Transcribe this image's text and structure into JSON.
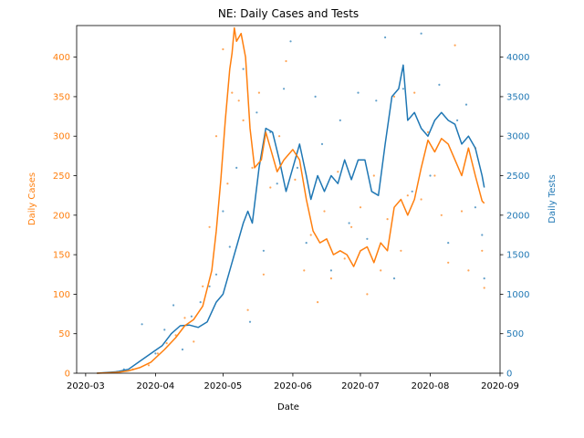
{
  "chart_data": {
    "type": "line",
    "title": "NE: Daily Cases and Tests",
    "xlabel": "Date",
    "ylabel_left": "Daily Cases",
    "ylabel_right": "Daily Tests",
    "x_ticks": [
      "2020-03",
      "2020-04",
      "2020-05",
      "2020-06",
      "2020-07",
      "2020-08",
      "2020-09"
    ],
    "xlim": [
      "2020-02-26",
      "2020-09-01"
    ],
    "ylim_left": [
      0,
      440
    ],
    "ylim_right": [
      0,
      4400
    ],
    "yticks_left": [
      0,
      50,
      100,
      150,
      200,
      250,
      300,
      350,
      400
    ],
    "yticks_right": [
      0,
      500,
      1000,
      1500,
      2000,
      2500,
      3000,
      3500,
      4000
    ],
    "grid": false,
    "colors": {
      "cases": "#ff7f0e",
      "tests": "#1f77b4"
    },
    "series": [
      {
        "axis": "left",
        "color": "#ff7f0e",
        "line": [
          [
            "2020-03-06",
            0
          ],
          [
            "2020-03-15",
            1
          ],
          [
            "2020-03-20",
            3
          ],
          [
            "2020-03-25",
            7
          ],
          [
            "2020-03-30",
            14
          ],
          [
            "2020-04-05",
            30
          ],
          [
            "2020-04-10",
            45
          ],
          [
            "2020-04-14",
            60
          ],
          [
            "2020-04-18",
            68
          ],
          [
            "2020-04-22",
            85
          ],
          [
            "2020-04-26",
            130
          ],
          [
            "2020-04-28",
            180
          ],
          [
            "2020-04-30",
            245
          ],
          [
            "2020-05-02",
            320
          ],
          [
            "2020-05-04",
            385
          ],
          [
            "2020-05-05",
            405
          ],
          [
            "2020-05-06",
            437
          ],
          [
            "2020-05-07",
            420
          ],
          [
            "2020-05-09",
            430
          ],
          [
            "2020-05-11",
            400
          ],
          [
            "2020-05-13",
            310
          ],
          [
            "2020-05-15",
            260
          ],
          [
            "2020-05-18",
            270
          ],
          [
            "2020-05-20",
            305
          ],
          [
            "2020-05-22",
            285
          ],
          [
            "2020-05-25",
            255
          ],
          [
            "2020-05-28",
            270
          ],
          [
            "2020-06-01",
            283
          ],
          [
            "2020-06-04",
            270
          ],
          [
            "2020-06-07",
            220
          ],
          [
            "2020-06-10",
            180
          ],
          [
            "2020-06-13",
            165
          ],
          [
            "2020-06-16",
            170
          ],
          [
            "2020-06-19",
            150
          ],
          [
            "2020-06-22",
            155
          ],
          [
            "2020-06-25",
            150
          ],
          [
            "2020-06-28",
            135
          ],
          [
            "2020-07-01",
            155
          ],
          [
            "2020-07-04",
            160
          ],
          [
            "2020-07-07",
            140
          ],
          [
            "2020-07-10",
            165
          ],
          [
            "2020-07-13",
            155
          ],
          [
            "2020-07-16",
            210
          ],
          [
            "2020-07-19",
            220
          ],
          [
            "2020-07-22",
            200
          ],
          [
            "2020-07-25",
            220
          ],
          [
            "2020-07-28",
            260
          ],
          [
            "2020-07-31",
            295
          ],
          [
            "2020-08-03",
            280
          ],
          [
            "2020-08-06",
            297
          ],
          [
            "2020-08-09",
            290
          ],
          [
            "2020-08-12",
            270
          ],
          [
            "2020-08-15",
            250
          ],
          [
            "2020-08-18",
            285
          ],
          [
            "2020-08-21",
            250
          ],
          [
            "2020-08-24",
            218
          ],
          [
            "2020-08-25",
            215
          ]
        ],
        "points": [
          [
            "2020-03-15",
            2
          ],
          [
            "2020-03-22",
            5
          ],
          [
            "2020-03-29",
            10
          ],
          [
            "2020-04-02",
            25
          ],
          [
            "2020-04-06",
            38
          ],
          [
            "2020-04-10",
            48
          ],
          [
            "2020-04-14",
            70
          ],
          [
            "2020-04-18",
            40
          ],
          [
            "2020-04-22",
            110
          ],
          [
            "2020-04-25",
            185
          ],
          [
            "2020-04-28",
            300
          ],
          [
            "2020-05-01",
            410
          ],
          [
            "2020-05-03",
            240
          ],
          [
            "2020-05-05",
            355
          ],
          [
            "2020-05-08",
            345
          ],
          [
            "2020-05-10",
            320
          ],
          [
            "2020-05-12",
            80
          ],
          [
            "2020-05-14",
            260
          ],
          [
            "2020-05-17",
            355
          ],
          [
            "2020-05-19",
            125
          ],
          [
            "2020-05-22",
            235
          ],
          [
            "2020-05-26",
            300
          ],
          [
            "2020-05-29",
            395
          ],
          [
            "2020-06-02",
            245
          ],
          [
            "2020-06-06",
            130
          ],
          [
            "2020-06-09",
            175
          ],
          [
            "2020-06-12",
            90
          ],
          [
            "2020-06-15",
            205
          ],
          [
            "2020-06-18",
            120
          ],
          [
            "2020-06-21",
            255
          ],
          [
            "2020-06-24",
            145
          ],
          [
            "2020-06-27",
            185
          ],
          [
            "2020-07-01",
            210
          ],
          [
            "2020-07-04",
            100
          ],
          [
            "2020-07-07",
            250
          ],
          [
            "2020-07-10",
            130
          ],
          [
            "2020-07-13",
            195
          ],
          [
            "2020-07-16",
            350
          ],
          [
            "2020-07-19",
            155
          ],
          [
            "2020-07-22",
            225
          ],
          [
            "2020-07-25",
            355
          ],
          [
            "2020-07-28",
            220
          ],
          [
            "2020-07-31",
            305
          ],
          [
            "2020-08-03",
            250
          ],
          [
            "2020-08-06",
            200
          ],
          [
            "2020-08-09",
            140
          ],
          [
            "2020-08-12",
            415
          ],
          [
            "2020-08-15",
            205
          ],
          [
            "2020-08-18",
            130
          ],
          [
            "2020-08-21",
            285
          ],
          [
            "2020-08-24",
            155
          ],
          [
            "2020-08-25",
            108
          ]
        ]
      },
      {
        "axis": "right",
        "color": "#1f77b4",
        "line": [
          [
            "2020-03-06",
            0
          ],
          [
            "2020-03-15",
            20
          ],
          [
            "2020-03-20",
            50
          ],
          [
            "2020-03-25",
            150
          ],
          [
            "2020-03-30",
            250
          ],
          [
            "2020-04-04",
            350
          ],
          [
            "2020-04-08",
            500
          ],
          [
            "2020-04-12",
            600
          ],
          [
            "2020-04-16",
            610
          ],
          [
            "2020-04-20",
            580
          ],
          [
            "2020-04-24",
            650
          ],
          [
            "2020-04-28",
            900
          ],
          [
            "2020-05-01",
            1000
          ],
          [
            "2020-05-04",
            1300
          ],
          [
            "2020-05-07",
            1600
          ],
          [
            "2020-05-10",
            1900
          ],
          [
            "2020-05-12",
            2050
          ],
          [
            "2020-05-14",
            1900
          ],
          [
            "2020-05-17",
            2600
          ],
          [
            "2020-05-20",
            3100
          ],
          [
            "2020-05-23",
            3050
          ],
          [
            "2020-05-26",
            2700
          ],
          [
            "2020-05-29",
            2300
          ],
          [
            "2020-06-01",
            2600
          ],
          [
            "2020-06-04",
            2900
          ],
          [
            "2020-06-07",
            2500
          ],
          [
            "2020-06-09",
            2200
          ],
          [
            "2020-06-12",
            2500
          ],
          [
            "2020-06-15",
            2300
          ],
          [
            "2020-06-18",
            2500
          ],
          [
            "2020-06-21",
            2400
          ],
          [
            "2020-06-24",
            2700
          ],
          [
            "2020-06-27",
            2450
          ],
          [
            "2020-06-30",
            2700
          ],
          [
            "2020-07-03",
            2700
          ],
          [
            "2020-07-06",
            2300
          ],
          [
            "2020-07-09",
            2250
          ],
          [
            "2020-07-12",
            2900
          ],
          [
            "2020-07-15",
            3500
          ],
          [
            "2020-07-18",
            3600
          ],
          [
            "2020-07-20",
            3900
          ],
          [
            "2020-07-22",
            3200
          ],
          [
            "2020-07-25",
            3300
          ],
          [
            "2020-07-28",
            3100
          ],
          [
            "2020-07-31",
            3000
          ],
          [
            "2020-08-03",
            3200
          ],
          [
            "2020-08-06",
            3300
          ],
          [
            "2020-08-09",
            3200
          ],
          [
            "2020-08-12",
            3150
          ],
          [
            "2020-08-15",
            2900
          ],
          [
            "2020-08-18",
            3000
          ],
          [
            "2020-08-21",
            2850
          ],
          [
            "2020-08-24",
            2500
          ],
          [
            "2020-08-25",
            2350
          ]
        ],
        "points": [
          [
            "2020-03-18",
            50
          ],
          [
            "2020-03-26",
            620
          ],
          [
            "2020-04-01",
            250
          ],
          [
            "2020-04-05",
            550
          ],
          [
            "2020-04-09",
            860
          ],
          [
            "2020-04-13",
            300
          ],
          [
            "2020-04-17",
            720
          ],
          [
            "2020-04-21",
            900
          ],
          [
            "2020-04-25",
            1100
          ],
          [
            "2020-04-28",
            1250
          ],
          [
            "2020-05-01",
            2050
          ],
          [
            "2020-05-04",
            1600
          ],
          [
            "2020-05-07",
            2600
          ],
          [
            "2020-05-10",
            3850
          ],
          [
            "2020-05-13",
            650
          ],
          [
            "2020-05-16",
            3300
          ],
          [
            "2020-05-19",
            1550
          ],
          [
            "2020-05-22",
            3050
          ],
          [
            "2020-05-25",
            2400
          ],
          [
            "2020-05-28",
            3600
          ],
          [
            "2020-05-31",
            4200
          ],
          [
            "2020-06-03",
            2600
          ],
          [
            "2020-06-07",
            1650
          ],
          [
            "2020-06-11",
            3500
          ],
          [
            "2020-06-14",
            2900
          ],
          [
            "2020-06-18",
            1300
          ],
          [
            "2020-06-22",
            3200
          ],
          [
            "2020-06-26",
            1900
          ],
          [
            "2020-06-30",
            3550
          ],
          [
            "2020-07-04",
            1700
          ],
          [
            "2020-07-08",
            3450
          ],
          [
            "2020-07-12",
            4250
          ],
          [
            "2020-07-16",
            1200
          ],
          [
            "2020-07-20",
            3600
          ],
          [
            "2020-07-24",
            2300
          ],
          [
            "2020-07-28",
            4300
          ],
          [
            "2020-08-01",
            2500
          ],
          [
            "2020-08-05",
            3650
          ],
          [
            "2020-08-09",
            1650
          ],
          [
            "2020-08-13",
            3200
          ],
          [
            "2020-08-17",
            3400
          ],
          [
            "2020-08-21",
            2100
          ],
          [
            "2020-08-24",
            1750
          ],
          [
            "2020-08-25",
            1200
          ]
        ]
      }
    ]
  }
}
